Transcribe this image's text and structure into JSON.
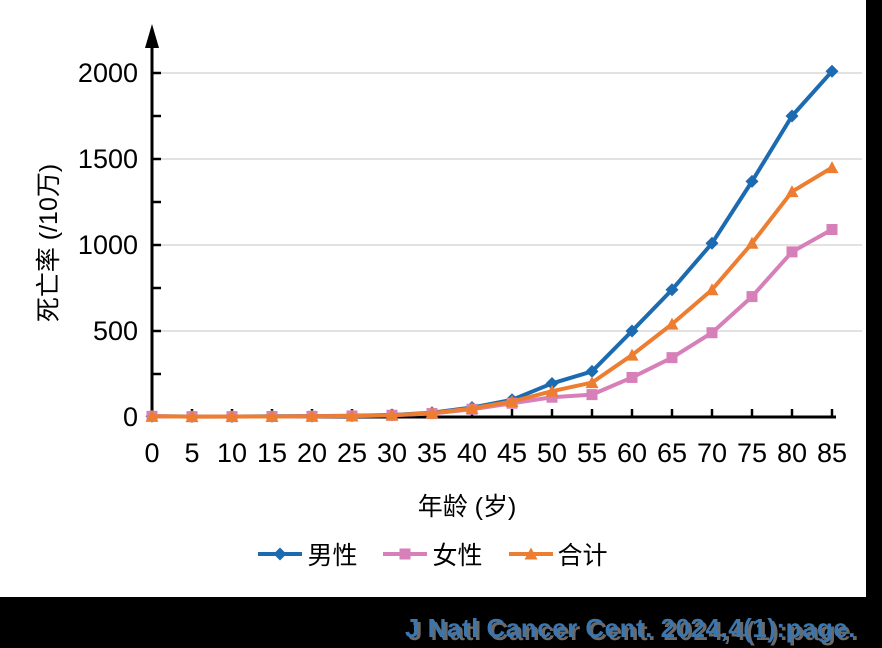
{
  "chart_data": {
    "type": "line",
    "title": "",
    "xlabel": "年龄 (岁)",
    "ylabel": "死亡率 (/10万)",
    "x": [
      0,
      5,
      10,
      15,
      20,
      25,
      30,
      35,
      40,
      45,
      50,
      55,
      60,
      65,
      70,
      75,
      80,
      85
    ],
    "y_ticks": [
      0,
      500,
      1000,
      1500,
      2000
    ],
    "y_minor_step": 250,
    "ylim": [
      0,
      2250
    ],
    "grid": "horizontal-only",
    "gridline_color": "#D9D9D9",
    "axis_color": "#000000",
    "legend_position": "bottom-center",
    "series": [
      {
        "name": "男性",
        "marker": "diamond",
        "color": "#1C6BB0",
        "values": [
          4,
          3,
          3,
          4,
          5,
          7,
          12,
          25,
          55,
          100,
          195,
          265,
          500,
          740,
          1010,
          1370,
          1750,
          2010
        ]
      },
      {
        "name": "女性",
        "marker": "square",
        "color": "#D67FB8",
        "values": [
          4,
          2,
          2,
          3,
          4,
          6,
          10,
          20,
          45,
          80,
          115,
          130,
          230,
          345,
          490,
          700,
          960,
          1090
        ]
      },
      {
        "name": "合计",
        "marker": "triangle",
        "color": "#ED7D31",
        "values": [
          4,
          2,
          3,
          3,
          4,
          6,
          11,
          22,
          50,
          90,
          150,
          200,
          360,
          540,
          740,
          1010,
          1310,
          1450
        ]
      }
    ]
  },
  "citation": {
    "text": "J Natl Cancer Cent. 2024,4(1):page.",
    "color": "#3B76AF",
    "shadow_color": "#6A6A6A"
  }
}
